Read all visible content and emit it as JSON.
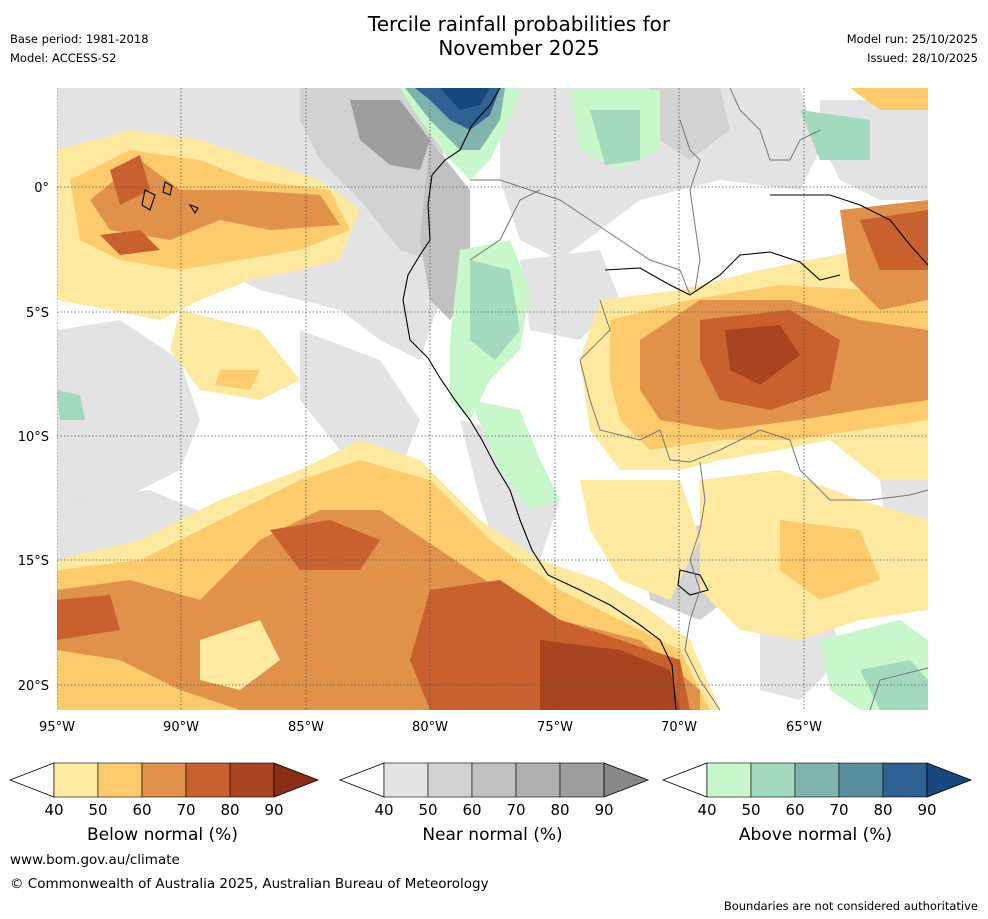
{
  "header": {
    "title_line1": "Tercile rainfall probabilities for",
    "title_line2": "November 2025",
    "base_period": "Base period: 1981-2018",
    "model": "Model: ACCESS-S2",
    "model_run": "Model run: 25/10/2025",
    "issued": "Issued: 28/10/2025"
  },
  "map": {
    "lon_labels": [
      "95°W",
      "90°W",
      "85°W",
      "80°W",
      "75°W",
      "70°W",
      "65°W"
    ],
    "lat_labels": [
      "0°",
      "5°S",
      "10°S",
      "15°S",
      "20°S"
    ]
  },
  "colors": {
    "below": [
      "#ffffff",
      "#fee9a0",
      "#fdcb6b",
      "#e0914a",
      "#c8612e",
      "#a84520",
      "#8b2e16"
    ],
    "near": [
      "#ffffff",
      "#e3e3e3",
      "#d2d2d2",
      "#c1c1c1",
      "#b0b0b0",
      "#9e9e9e",
      "#888888"
    ],
    "above": [
      "#ffffff",
      "#c9f7cc",
      "#a3d9bd",
      "#7fb4ad",
      "#588f9f",
      "#2f6193",
      "#17497f"
    ]
  },
  "legends": [
    {
      "title": "Below normal (%)",
      "ticks": [
        "40",
        "50",
        "60",
        "70",
        "80",
        "90"
      ]
    },
    {
      "title": "Near normal (%)",
      "ticks": [
        "40",
        "50",
        "60",
        "70",
        "80",
        "90"
      ]
    },
    {
      "title": "Above normal (%)",
      "ticks": [
        "40",
        "50",
        "60",
        "70",
        "80",
        "90"
      ]
    }
  ],
  "footer": {
    "url": "www.bom.gov.au/climate",
    "copyright": "© Commonwealth of Australia 2025, Australian Bureau of Meteorology",
    "disclaimer": "Boundaries are not considered authoritative"
  }
}
